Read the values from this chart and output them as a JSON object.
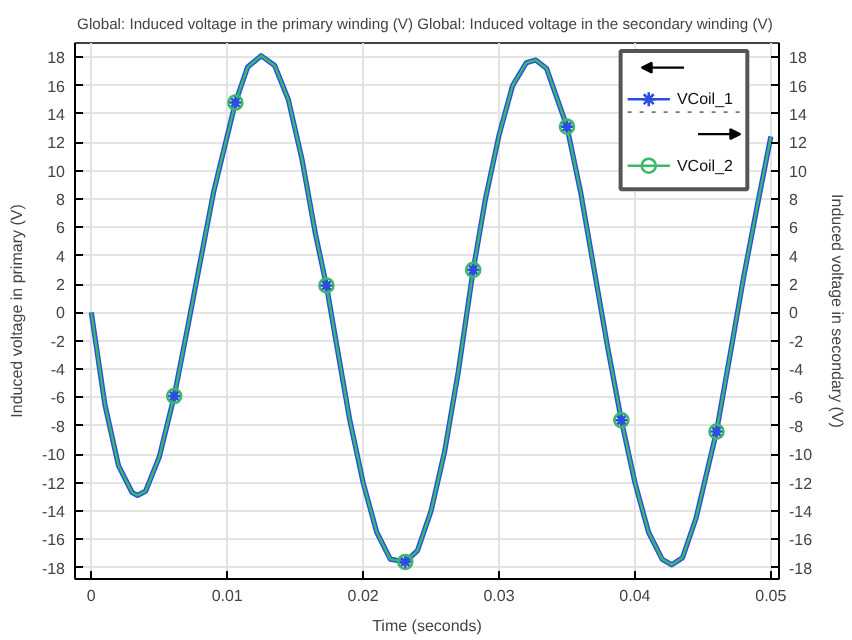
{
  "chart_data": {
    "type": "line",
    "title": "Global: Induced voltage in the primary winding (V)  Global: Induced voltage in the secondary winding (V)",
    "xlabel": "Time (seconds)",
    "ylabel": "Induced voltage in primary (V)",
    "y2label": "Induced voltage in secondary (V)",
    "x": [
      0,
      0.001,
      0.002,
      0.003,
      0.0034,
      0.004,
      0.005,
      0.0061,
      0.007,
      0.008,
      0.009,
      0.0106,
      0.0115,
      0.0125,
      0.0135,
      0.0145,
      0.0155,
      0.0165,
      0.0173,
      0.018,
      0.019,
      0.02,
      0.021,
      0.022,
      0.0231,
      0.024,
      0.025,
      0.026,
      0.027,
      0.0281,
      0.029,
      0.03,
      0.031,
      0.032,
      0.0327,
      0.0335,
      0.035,
      0.036,
      0.037,
      0.038,
      0.039,
      0.04,
      0.041,
      0.042,
      0.0427,
      0.0435,
      0.0445,
      0.046,
      0.047,
      0.048,
      0.049,
      0.05
    ],
    "series": [
      {
        "name": "VCoil_1",
        "color": "#2a4fe0",
        "axis": "y",
        "values": [
          0,
          -6.5,
          -10.8,
          -12.7,
          -12.9,
          -12.6,
          -10.2,
          -5.9,
          -1.5,
          3.5,
          8.5,
          14.8,
          17.3,
          18.1,
          17.4,
          15.0,
          10.8,
          5.5,
          1.9,
          -2.0,
          -7.5,
          -12.0,
          -15.5,
          -17.4,
          -17.6,
          -16.8,
          -14.0,
          -9.8,
          -4.2,
          3.0,
          8.0,
          12.5,
          16.0,
          17.6,
          17.8,
          17.2,
          13.1,
          8.5,
          3.0,
          -2.5,
          -7.6,
          -12.0,
          -15.5,
          -17.4,
          -17.8,
          -17.3,
          -14.5,
          -8.4,
          -3.0,
          2.5,
          7.5,
          12.4
        ]
      },
      {
        "name": "VCoil_2",
        "color": "#3cb86a",
        "axis": "y2",
        "values": [
          0,
          -6.5,
          -10.8,
          -12.7,
          -12.9,
          -12.6,
          -10.2,
          -5.9,
          -1.5,
          3.5,
          8.5,
          14.8,
          17.3,
          18.1,
          17.4,
          15.0,
          10.8,
          5.5,
          1.9,
          -2.0,
          -7.5,
          -12.0,
          -15.5,
          -17.4,
          -17.6,
          -16.8,
          -14.0,
          -9.8,
          -4.2,
          3.0,
          8.0,
          12.5,
          16.0,
          17.6,
          17.8,
          17.2,
          13.1,
          8.5,
          3.0,
          -2.5,
          -7.6,
          -12.0,
          -15.5,
          -17.4,
          -17.8,
          -17.3,
          -14.5,
          -8.4,
          -3.0,
          2.5,
          7.5,
          12.4
        ]
      },
      {
        "color": "#2a4fe0",
        "type": "scatter",
        "axis": "y",
        "marker": "cross",
        "x": [
          0.0061,
          0.0106,
          0.0173,
          0.0231,
          0.0281,
          0.035,
          0.039,
          0.046
        ],
        "values": [
          -5.9,
          14.8,
          1.9,
          -17.6,
          3.0,
          13.1,
          -7.6,
          -8.4
        ]
      },
      {
        "color": "#3cb86a",
        "type": "scatter",
        "axis": "y2",
        "marker": "circle",
        "x": [
          0.0061,
          0.0106,
          0.0173,
          0.0231,
          0.0281,
          0.035,
          0.039,
          0.046
        ],
        "values": [
          -5.9,
          14.8,
          1.9,
          -17.6,
          3.0,
          13.1,
          -7.6,
          -8.4
        ]
      }
    ],
    "xlim": [
      -0.0012,
      0.0506
    ],
    "ylim": [
      -18.8,
      19
    ],
    "y2lim": [
      -18.8,
      19
    ],
    "xticks": [
      0,
      0.01,
      0.02,
      0.03,
      0.04,
      0.05
    ],
    "yticks": [
      -18,
      -16,
      -14,
      -12,
      -10,
      -8,
      -6,
      -4,
      -2,
      0,
      2,
      4,
      6,
      8,
      10,
      12,
      14,
      16,
      18
    ],
    "y2ticks": [
      -18,
      -16,
      -14,
      -12,
      -10,
      -8,
      -6,
      -4,
      -2,
      0,
      2,
      4,
      6,
      8,
      10,
      12,
      14,
      16,
      18
    ],
    "grid": true,
    "legend": "top right",
    "line_style": "solid"
  }
}
